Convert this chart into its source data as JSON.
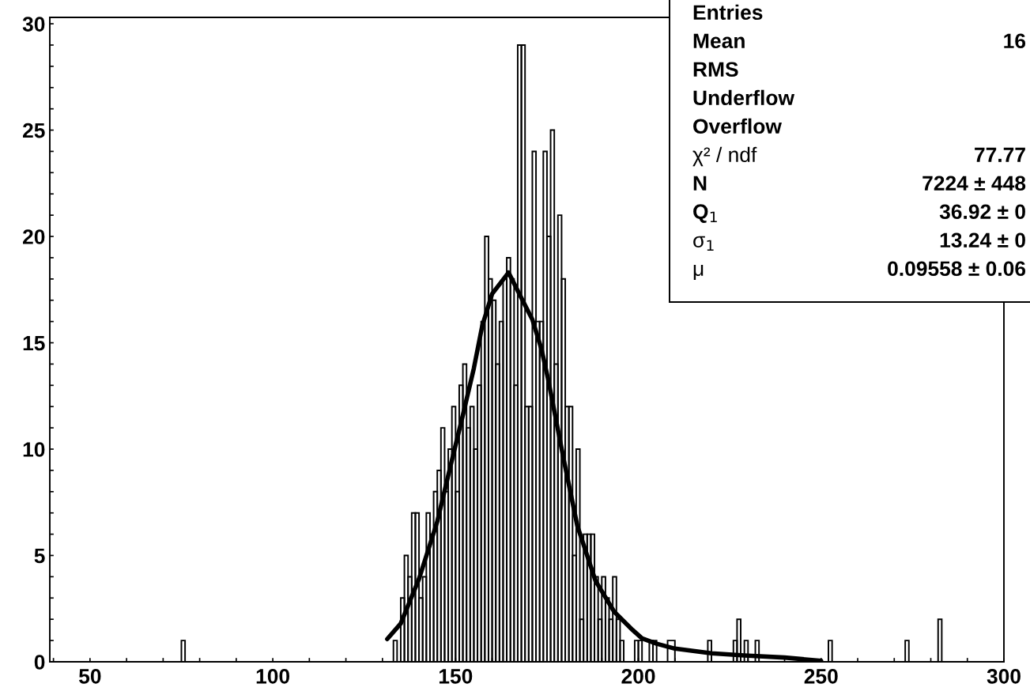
{
  "chart_data": {
    "type": "histogram",
    "bins": [
      39,
      75,
      76,
      133,
      134,
      135,
      136,
      137,
      138,
      139,
      140,
      141,
      142,
      143,
      144,
      145,
      146,
      147,
      148,
      149,
      150,
      151,
      152,
      153,
      154,
      155,
      156,
      157,
      158,
      159,
      160,
      161,
      162,
      163,
      164,
      165,
      166,
      167,
      168,
      169,
      170,
      171,
      172,
      173,
      174,
      175,
      176,
      177,
      178,
      179,
      180,
      181,
      182,
      183,
      184,
      185,
      186,
      187,
      188,
      189,
      190,
      191,
      192,
      193,
      194,
      195,
      196,
      197,
      198,
      199,
      200,
      201,
      203,
      204,
      205,
      208,
      210,
      219,
      220,
      226,
      227,
      228,
      229,
      230,
      232,
      233,
      252,
      253,
      273,
      274,
      282,
      283,
      300
    ],
    "values": [
      0,
      1,
      0,
      1,
      0,
      3,
      5,
      4,
      7,
      7,
      3,
      4,
      7,
      6,
      8,
      9,
      11,
      8,
      10,
      12,
      8,
      13,
      14,
      11,
      12,
      10,
      13,
      16,
      20,
      18,
      17,
      14,
      16,
      18,
      19,
      18,
      13,
      29,
      29,
      12,
      12,
      24,
      16,
      16,
      24,
      20,
      25,
      14,
      21,
      18,
      12,
      12,
      5,
      10,
      2,
      6,
      6,
      6,
      4,
      2,
      4,
      3,
      2,
      4,
      2,
      1,
      0,
      0,
      0,
      1,
      1,
      0,
      1,
      1,
      0,
      1,
      0,
      1,
      0,
      1,
      2,
      0,
      1,
      0,
      1,
      0,
      1,
      0,
      1,
      0,
      2,
      0
    ],
    "color": "#000000",
    "series": [
      {
        "type": "line",
        "color": "#000000",
        "x": [
          131.3,
          135,
          140,
          145,
          148.6,
          152,
          155,
          157.3,
          160,
          164.5,
          169.5,
          171,
          173.5,
          175.3,
          179.6,
          183.3,
          188.3,
          193.4,
          198.4,
          201,
          205,
          210,
          220,
          229,
          240,
          250
        ],
        "values": [
          1.07,
          1.8,
          3.9,
          6.6,
          9.2,
          11.6,
          13.8,
          15.8,
          17.3,
          18.3,
          16.6,
          16.1,
          14.7,
          13.3,
          9.5,
          6.4,
          3.8,
          2.35,
          1.5,
          1.1,
          0.85,
          0.62,
          0.4,
          0.3,
          0.2,
          0.05
        ]
      }
    ],
    "xlim": [
      39,
      300
    ],
    "ylim": [
      0,
      30.3
    ],
    "xticks": [
      {
        "value": 40,
        "label": null
      },
      50,
      {
        "value": 60,
        "label": null
      },
      {
        "value": 70,
        "label": null
      },
      {
        "value": 80,
        "label": null
      },
      {
        "value": 90,
        "label": null
      },
      100,
      {
        "value": 110,
        "label": null
      },
      {
        "value": 120,
        "label": null
      },
      {
        "value": 130,
        "label": null
      },
      {
        "value": 140,
        "label": null
      },
      150,
      {
        "value": 160,
        "label": null
      },
      {
        "value": 170,
        "label": null
      },
      {
        "value": 180,
        "label": null
      },
      {
        "value": 190,
        "label": null
      },
      200,
      {
        "value": 210,
        "label": null
      },
      {
        "value": 220,
        "label": null
      },
      {
        "value": 230,
        "label": null
      },
      {
        "value": 240,
        "label": null
      },
      250,
      {
        "value": 260,
        "label": null
      },
      {
        "value": 270,
        "label": null
      },
      {
        "value": 280,
        "label": null
      },
      {
        "value": 290,
        "label": null
      },
      300
    ],
    "yticks": [
      0,
      {
        "value": 1,
        "label": null
      },
      {
        "value": 2,
        "label": null
      },
      {
        "value": 3,
        "label": null
      },
      {
        "value": 4,
        "label": null
      },
      5,
      {
        "value": 6,
        "label": null
      },
      {
        "value": 7,
        "label": null
      },
      {
        "value": 8,
        "label": null
      },
      {
        "value": 9,
        "label": null
      },
      10,
      {
        "value": 11,
        "label": null
      },
      {
        "value": 12,
        "label": null
      },
      {
        "value": 13,
        "label": null
      },
      {
        "value": 14,
        "label": null
      },
      15,
      {
        "value": 16,
        "label": null
      },
      {
        "value": 17,
        "label": null
      },
      {
        "value": 18,
        "label": null
      },
      {
        "value": 19,
        "label": null
      },
      20,
      {
        "value": 21,
        "label": null
      },
      {
        "value": 22,
        "label": null
      },
      {
        "value": 23,
        "label": null
      },
      {
        "value": 24,
        "label": null
      },
      25,
      {
        "value": 26,
        "label": null
      },
      {
        "value": 27,
        "label": null
      },
      {
        "value": 28,
        "label": null
      },
      {
        "value": 29,
        "label": null
      },
      30
    ],
    "annotations": [
      "Entries",
      "Mean",
      "16",
      "RMS",
      "Underflow",
      "Overflow",
      "χ² / ndf",
      "77.77",
      "N",
      "7224 ± 448",
      "Q$_{1}$",
      "36.92 ± 0",
      "σ$_{1}$",
      "13.24 ± 0",
      "μ",
      "0.09558 ± 0.06"
    ]
  }
}
